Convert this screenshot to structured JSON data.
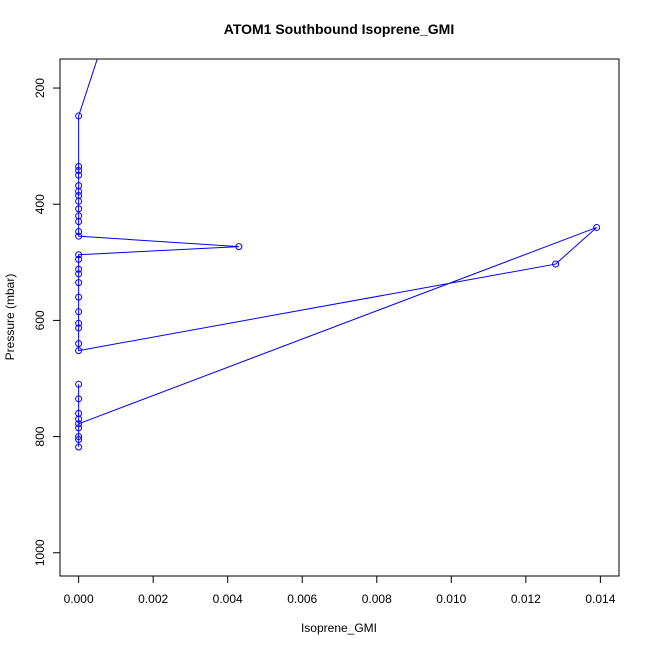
{
  "chart_data": {
    "type": "scatter",
    "title": "ATOM1 Southbound Isoprene_GMI",
    "xlabel": "Isoprene_GMI",
    "ylabel": "Pressure (mbar)",
    "xlim": [
      -0.0005,
      0.0145
    ],
    "ylim": [
      1040,
      150
    ],
    "y_reversed": true,
    "x_ticks": [
      "0.000",
      "0.002",
      "0.004",
      "0.006",
      "0.008",
      "0.010",
      "0.012",
      "0.014"
    ],
    "x_tick_values": [
      0,
      0.002,
      0.004,
      0.006,
      0.008,
      0.01,
      0.012,
      0.014
    ],
    "y_ticks": [
      "200",
      "400",
      "600",
      "800",
      "1000"
    ],
    "y_tick_values": [
      200,
      400,
      600,
      800,
      1000
    ],
    "colors": {
      "series": "#0000ff",
      "axis": "#000000"
    },
    "series": [
      {
        "style": "points+lines",
        "points": [
          {
            "x": 0.0005,
            "y": 150
          },
          {
            "x": 0.0,
            "y": 248
          },
          {
            "x": 0.0,
            "y": 335
          },
          {
            "x": 0.0,
            "y": 342
          },
          {
            "x": 0.0,
            "y": 350
          },
          {
            "x": 0.0,
            "y": 368
          },
          {
            "x": 0.0,
            "y": 378
          },
          {
            "x": 0.0,
            "y": 385
          },
          {
            "x": 0.0,
            "y": 395
          },
          {
            "x": 0.0,
            "y": 408
          },
          {
            "x": 0.0,
            "y": 420
          },
          {
            "x": 0.0,
            "y": 430
          },
          {
            "x": 0.0,
            "y": 447
          },
          {
            "x": 0.0,
            "y": 455
          },
          {
            "x": 0.0043,
            "y": 473
          },
          {
            "x": 0.0,
            "y": 487
          },
          {
            "x": 0.0,
            "y": 495
          },
          {
            "x": 0.0,
            "y": 512
          },
          {
            "x": 0.0,
            "y": 520
          },
          {
            "x": 0.0,
            "y": 535
          },
          {
            "x": 0.0,
            "y": 560
          },
          {
            "x": 0.0,
            "y": 585
          },
          {
            "x": 0.0,
            "y": 605
          },
          {
            "x": 0.0,
            "y": 613
          },
          {
            "x": 0.0,
            "y": 640
          },
          {
            "x": 0.0,
            "y": 652
          },
          {
            "x": 0.0128,
            "y": 503
          },
          {
            "x": 0.0139,
            "y": 440
          },
          {
            "x": 0.0,
            "y": 778
          },
          {
            "x": 0.0,
            "y": 710
          },
          {
            "x": 0.0,
            "y": 735
          },
          {
            "x": 0.0,
            "y": 760
          },
          {
            "x": 0.0,
            "y": 770
          },
          {
            "x": 0.0,
            "y": 785
          },
          {
            "x": 0.0,
            "y": 800
          },
          {
            "x": 0.0,
            "y": 805
          },
          {
            "x": 0.0,
            "y": 818
          }
        ]
      }
    ]
  }
}
